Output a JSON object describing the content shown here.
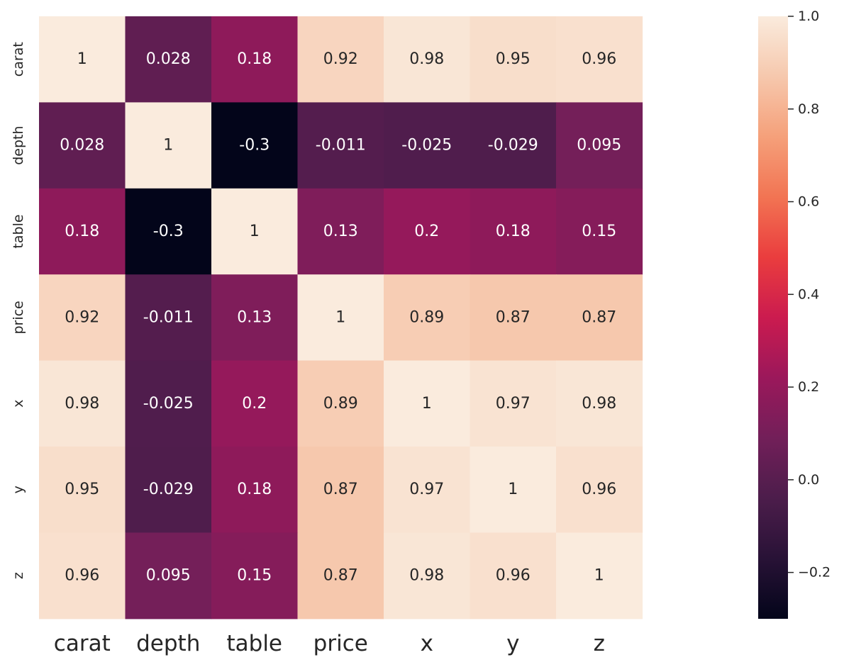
{
  "chart_data": {
    "type": "heatmap",
    "rows": [
      "carat",
      "depth",
      "table",
      "price",
      "x",
      "y",
      "z"
    ],
    "columns": [
      "carat",
      "depth",
      "table",
      "price",
      "x",
      "y",
      "z"
    ],
    "values": [
      [
        1,
        0.028,
        0.18,
        0.92,
        0.98,
        0.95,
        0.96
      ],
      [
        0.028,
        1,
        -0.3,
        -0.011,
        -0.025,
        -0.029,
        0.095
      ],
      [
        0.18,
        -0.3,
        1,
        0.13,
        0.2,
        0.18,
        0.15
      ],
      [
        0.92,
        -0.011,
        0.13,
        1,
        0.89,
        0.87,
        0.87
      ],
      [
        0.98,
        -0.025,
        0.2,
        0.89,
        1,
        0.97,
        0.98
      ],
      [
        0.95,
        -0.029,
        0.18,
        0.87,
        0.97,
        1,
        0.96
      ],
      [
        0.96,
        0.095,
        0.15,
        0.87,
        0.98,
        0.96,
        1
      ]
    ],
    "labels": [
      [
        "1",
        "0.028",
        "0.18",
        "0.92",
        "0.98",
        "0.95",
        "0.96"
      ],
      [
        "0.028",
        "1",
        "-0.3",
        "-0.011",
        "-0.025",
        "-0.029",
        "0.095"
      ],
      [
        "0.18",
        "-0.3",
        "1",
        "0.13",
        "0.2",
        "0.18",
        "0.15"
      ],
      [
        "0.92",
        "-0.011",
        "0.13",
        "1",
        "0.89",
        "0.87",
        "0.87"
      ],
      [
        "0.98",
        "-0.025",
        "0.2",
        "0.89",
        "1",
        "0.97",
        "0.98"
      ],
      [
        "0.95",
        "-0.029",
        "0.18",
        "0.87",
        "0.97",
        "1",
        "0.96"
      ],
      [
        "0.96",
        "0.095",
        "0.15",
        "0.87",
        "0.98",
        "0.96",
        "1"
      ]
    ],
    "colormap": "rocket",
    "vmin": -0.3,
    "vmax": 1.0,
    "colorbar": {
      "ticks": [
        -0.2,
        0.0,
        0.2,
        0.4,
        0.6,
        0.8,
        1.0
      ],
      "tick_labels": [
        "−0.2",
        "0.0",
        "0.2",
        "0.4",
        "0.6",
        "0.8",
        "1.0"
      ],
      "placement": "right"
    }
  }
}
